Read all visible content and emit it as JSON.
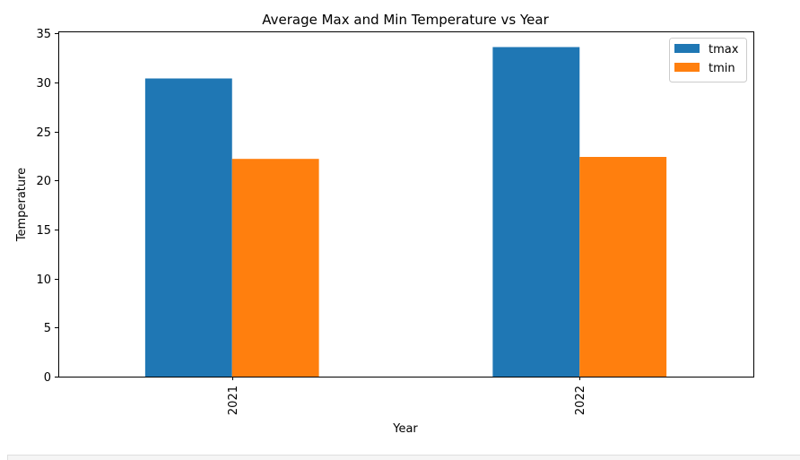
{
  "chart_data": {
    "type": "bar",
    "title": "Average Max and Min Temperature vs Year",
    "xlabel": "Year",
    "ylabel": "Temperature",
    "categories": [
      "2021",
      "2022"
    ],
    "series": [
      {
        "name": "tmax",
        "color": "#1f77b4",
        "values": [
          30.4,
          33.6
        ]
      },
      {
        "name": "tmin",
        "color": "#ff7f0e",
        "values": [
          22.2,
          22.4
        ]
      }
    ],
    "ylim": [
      0,
      35.2
    ],
    "yticks": [
      0,
      5,
      10,
      15,
      20,
      25,
      30,
      35
    ],
    "grid": false,
    "legend_position": "top-right",
    "xtick_rotation": "vertical"
  }
}
